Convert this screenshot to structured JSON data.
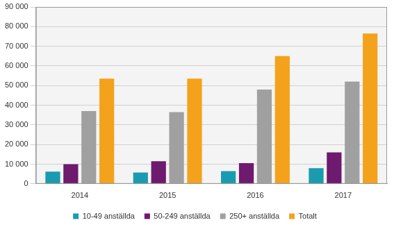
{
  "chart_data": {
    "type": "bar",
    "categories": [
      "2014",
      "2015",
      "2016",
      "2017"
    ],
    "series": [
      {
        "name": "10-49 anställda",
        "color": "#1a9bb0",
        "values": [
          6200,
          5800,
          6500,
          8000
        ]
      },
      {
        "name": "50-249 anställda",
        "color": "#6e1a6e",
        "values": [
          10000,
          11500,
          10500,
          16000
        ]
      },
      {
        "name": "250+ anställda",
        "color": "#a0a0a0",
        "values": [
          37000,
          36500,
          48000,
          52000
        ]
      },
      {
        "name": "Totalt",
        "color": "#f4a21c",
        "values": [
          53500,
          53500,
          65000,
          76500
        ]
      }
    ],
    "ylim": [
      0,
      90000
    ],
    "yticks": [
      0,
      {
        "value": 10000,
        "label": "10 000"
      },
      {
        "value": 20000,
        "label": "20 000"
      },
      {
        "value": 30000,
        "label": "30 000"
      },
      {
        "value": 40000,
        "label": "40 000"
      },
      {
        "value": 50000,
        "label": "50 000"
      },
      {
        "value": 60000,
        "label": "60 000"
      },
      {
        "value": 70000,
        "label": "70 000"
      },
      {
        "value": 80000,
        "label": "80 000"
      },
      {
        "value": 90000,
        "label": "90 000"
      }
    ],
    "grid": true,
    "legend": "bottom"
  }
}
